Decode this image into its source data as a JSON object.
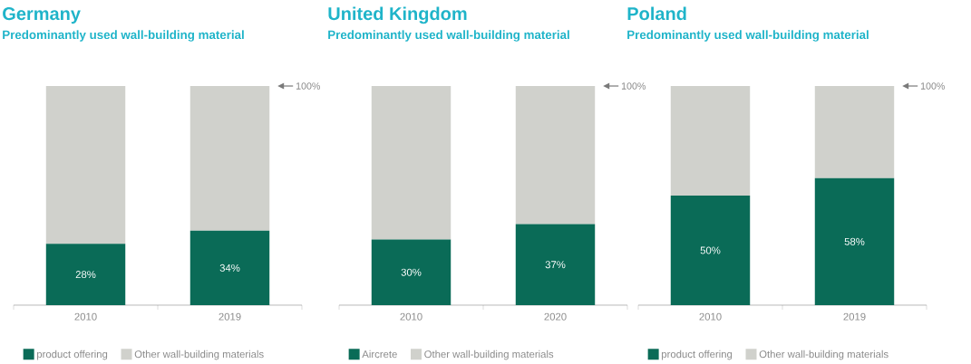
{
  "chart_data": [
    {
      "type": "bar",
      "stacked": true,
      "title": "Germany",
      "subtitle": "Predominantly used wall-building material",
      "categories": [
        "2010",
        "2019"
      ],
      "legend": "bottom",
      "series": [
        {
          "name": "product offering",
          "color": "#0a6b57",
          "values": [
            28,
            34
          ],
          "value_labels": [
            "28%",
            "34%"
          ]
        },
        {
          "name": "Other wall-building materials",
          "color": "#d0d1cc",
          "values": [
            72,
            66
          ]
        }
      ],
      "ref_lines": [
        {
          "axis": "y",
          "value": 100,
          "label": "100%"
        }
      ]
    },
    {
      "type": "bar",
      "stacked": true,
      "title": "United Kingdom",
      "subtitle": "Predominantly used wall-building material",
      "categories": [
        "2010",
        "2020"
      ],
      "legend": "bottom",
      "series": [
        {
          "name": "Aircrete",
          "color": "#0a6b57",
          "values": [
            30,
            37
          ],
          "value_labels": [
            "30%",
            "37%"
          ]
        },
        {
          "name": "Other wall-building materials",
          "color": "#d0d1cc",
          "values": [
            70,
            63
          ]
        }
      ],
      "ref_lines": [
        {
          "axis": "y",
          "value": 100,
          "label": "100%"
        }
      ]
    },
    {
      "type": "bar",
      "stacked": true,
      "title": "Poland",
      "subtitle": "Predominantly used wall-building material",
      "categories": [
        "2010",
        "2019"
      ],
      "legend": "bottom",
      "series": [
        {
          "name": "product offering",
          "color": "#0a6b57",
          "values": [
            50,
            58
          ],
          "value_labels": [
            "50%",
            "58%"
          ]
        },
        {
          "name": "Other wall-building materials",
          "color": "#d0d1cc",
          "values": [
            50,
            42
          ]
        }
      ],
      "ref_lines": [
        {
          "axis": "y",
          "value": 100,
          "label": "100%"
        }
      ]
    }
  ]
}
